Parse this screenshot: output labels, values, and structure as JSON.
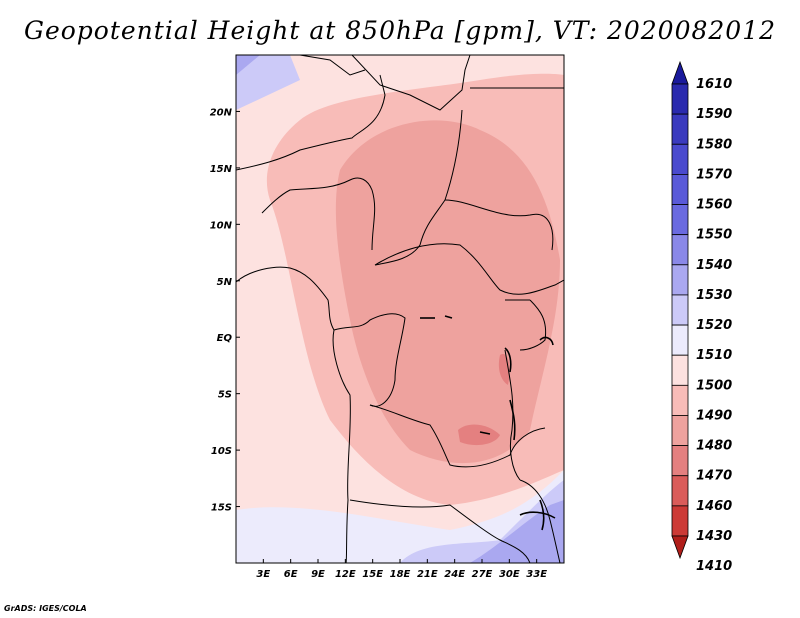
{
  "title": "Geopotential Height at 850hPa [gpm], VT: 2020082012",
  "credit": "GrADS: IGES/COLA",
  "map": {
    "region": "Central Africa",
    "lon_range": [
      0,
      36
    ],
    "lat_range": [
      -20,
      25
    ],
    "lat_ticks": [
      "20N",
      "15N",
      "10N",
      "5N",
      "EQ",
      "5S",
      "10S",
      "15S"
    ],
    "lat_values": [
      20,
      15,
      10,
      5,
      0,
      -5,
      -10,
      -15
    ],
    "lon_ticks": [
      "3E",
      "6E",
      "9E",
      "12E",
      "15E",
      "18E",
      "21E",
      "24E",
      "27E",
      "30E",
      "33E"
    ],
    "lon_values": [
      3,
      6,
      9,
      12,
      15,
      18,
      21,
      24,
      27,
      30,
      33
    ]
  },
  "chart_data": {
    "type": "heatmap",
    "variable": "Geopotential Height at 850hPa",
    "units": "gpm",
    "valid_time": "2020082012",
    "colorbar": {
      "levels": [
        "1610",
        "1590",
        "1580",
        "1570",
        "1560",
        "1550",
        "1540",
        "1530",
        "1520",
        "1510",
        "1500",
        "1490",
        "1480",
        "1470",
        "1460",
        "1430",
        "1410"
      ],
      "colors": [
        "#1a1a9c",
        "#2a2aae",
        "#3a3abe",
        "#4a4ace",
        "#5a5ad8",
        "#6a6ae0",
        "#8a88e8",
        "#aaa8f0",
        "#cccaf8",
        "#ecebfc",
        "#fde2e0",
        "#f8bcb8",
        "#eea29e",
        "#e48080",
        "#da5c5a",
        "#cc3a36",
        "#b01e1a"
      ]
    },
    "field": {
      "description": "Lowest heights (~1470-1480 gpm) over central Africa / Congo basin; higher (1510-1540 gpm) near northwest and southeast corners.",
      "min_region_value": 1470,
      "max_region_value": 1540
    }
  }
}
